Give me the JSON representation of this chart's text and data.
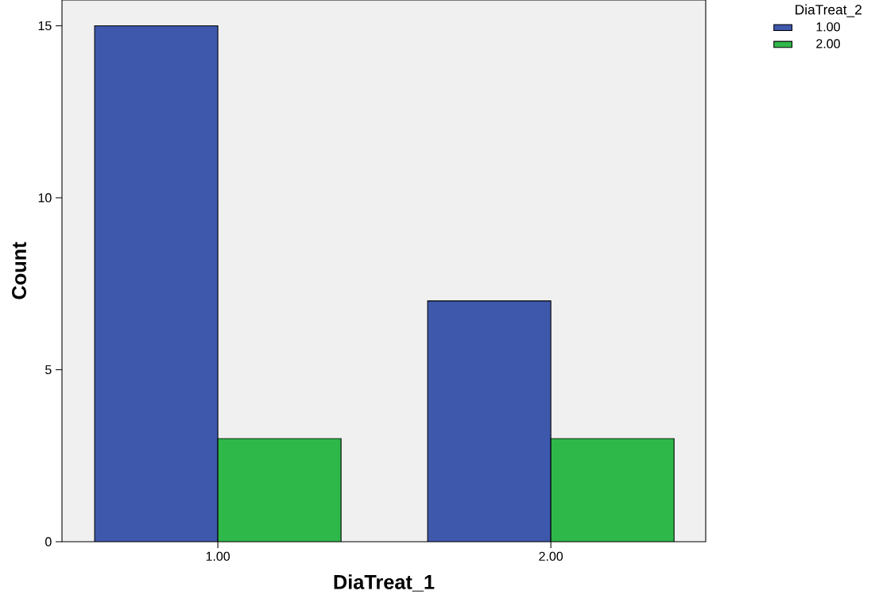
{
  "chart_data": {
    "type": "bar",
    "xlabel": "DiaTreat_1",
    "ylabel": "Count",
    "legend_title": "DiaTreat_2",
    "categories": [
      "1.00",
      "2.00"
    ],
    "series": [
      {
        "name": "1.00",
        "color": "#3e58ac",
        "values": [
          15,
          7
        ]
      },
      {
        "name": "2.00",
        "color": "#2fb84a",
        "values": [
          3,
          3
        ]
      }
    ],
    "ylim": [
      0,
      15.75
    ],
    "yticks": [
      0,
      5,
      10,
      15
    ],
    "legend": "top right"
  }
}
